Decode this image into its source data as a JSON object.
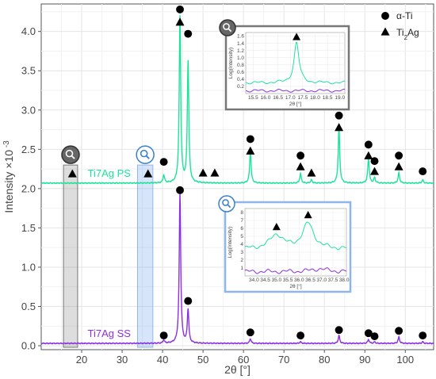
{
  "chart_data": {
    "type": "line",
    "xlabel": "2θ [°]",
    "ylabel": "Intensity ×10",
    "ylabel_exponent": "-3",
    "xlim": [
      10,
      107
    ],
    "ylim": [
      -0.05,
      4.35
    ],
    "xticks": [
      20,
      30,
      40,
      50,
      60,
      70,
      80,
      90,
      100
    ],
    "yticks": [
      "0.0",
      "0.5",
      "1.0",
      "1.5",
      "2.0",
      "2.5",
      "3.0",
      "3.5",
      "4.0"
    ],
    "grid": true,
    "legend": {
      "position": "top-right",
      "items": [
        {
          "symbol": "circle",
          "label": "α-Ti"
        },
        {
          "symbol": "triangle",
          "label": "Ti",
          "subscript": "2",
          "suffix": "Ag"
        }
      ]
    },
    "series": [
      {
        "name": "Ti7Ag PS",
        "color": "#1de39a",
        "baseline": 2.07,
        "peaks": [
          {
            "x": 40.3,
            "h": 0.1
          },
          {
            "x": 44.3,
            "h": 2.12
          },
          {
            "x": 46.3,
            "h": 1.55
          },
          {
            "x": 61.7,
            "h": 0.4
          },
          {
            "x": 74.1,
            "h": 0.12
          },
          {
            "x": 76.8,
            "h": 0.04
          },
          {
            "x": 83.6,
            "h": 0.72
          },
          {
            "x": 90.9,
            "h": 0.32
          },
          {
            "x": 92.4,
            "h": 0.07
          },
          {
            "x": 98.4,
            "h": 0.13
          },
          {
            "x": 104.3,
            "h": 0.04
          }
        ]
      },
      {
        "name": "Ti7Ag SS",
        "color": "#8b2fe0",
        "baseline": 0.03,
        "peaks": [
          {
            "x": 40.3,
            "h": 0.04
          },
          {
            "x": 44.3,
            "h": 1.92
          },
          {
            "x": 46.3,
            "h": 0.43
          },
          {
            "x": 61.7,
            "h": 0.06
          },
          {
            "x": 74.1,
            "h": 0.02
          },
          {
            "x": 83.6,
            "h": 0.1
          },
          {
            "x": 90.9,
            "h": 0.05
          },
          {
            "x": 92.4,
            "h": 0.02
          },
          {
            "x": 98.4,
            "h": 0.08
          },
          {
            "x": 104.3,
            "h": 0.02
          }
        ]
      }
    ],
    "markers": [
      {
        "symbol": "circle",
        "x": 44.3,
        "y": 4.28
      },
      {
        "symbol": "triangle",
        "x": 44.3,
        "y": 4.12
      },
      {
        "symbol": "circle",
        "x": 46.3,
        "y": 3.97
      },
      {
        "symbol": "circle",
        "x": 40.3,
        "y": 2.34
      },
      {
        "symbol": "triangle",
        "x": 17.7,
        "y": 2.19
      },
      {
        "symbol": "triangle",
        "x": 36.4,
        "y": 2.19
      },
      {
        "symbol": "triangle",
        "x": 50.0,
        "y": 2.2
      },
      {
        "symbol": "triangle",
        "x": 52.9,
        "y": 2.2
      },
      {
        "symbol": "circle",
        "x": 61.7,
        "y": 2.63
      },
      {
        "symbol": "triangle",
        "x": 61.7,
        "y": 2.48
      },
      {
        "symbol": "circle",
        "x": 74.1,
        "y": 2.42
      },
      {
        "symbol": "triangle",
        "x": 74.1,
        "y": 2.28
      },
      {
        "symbol": "triangle",
        "x": 76.8,
        "y": 2.2
      },
      {
        "symbol": "circle",
        "x": 83.6,
        "y": 2.93
      },
      {
        "symbol": "triangle",
        "x": 83.6,
        "y": 2.78
      },
      {
        "symbol": "circle",
        "x": 90.9,
        "y": 2.56
      },
      {
        "symbol": "triangle",
        "x": 90.9,
        "y": 2.42
      },
      {
        "symbol": "circle",
        "x": 92.4,
        "y": 2.35
      },
      {
        "symbol": "triangle",
        "x": 92.4,
        "y": 2.22
      },
      {
        "symbol": "circle",
        "x": 98.4,
        "y": 2.42
      },
      {
        "symbol": "triangle",
        "x": 98.4,
        "y": 2.28
      },
      {
        "symbol": "circle",
        "x": 104.3,
        "y": 2.22
      },
      {
        "symbol": "circle",
        "x": 44.3,
        "y": 1.98
      },
      {
        "symbol": "circle",
        "x": 46.3,
        "y": 0.57
      },
      {
        "symbol": "circle",
        "x": 40.3,
        "y": 0.13
      },
      {
        "symbol": "circle",
        "x": 61.7,
        "y": 0.17
      },
      {
        "symbol": "circle",
        "x": 74.1,
        "y": 0.13
      },
      {
        "symbol": "circle",
        "x": 83.6,
        "y": 0.2
      },
      {
        "symbol": "circle",
        "x": 90.9,
        "y": 0.16
      },
      {
        "symbol": "circle",
        "x": 92.4,
        "y": 0.12
      },
      {
        "symbol": "circle",
        "x": 98.4,
        "y": 0.19
      },
      {
        "symbol": "circle",
        "x": 104.3,
        "y": 0.13
      }
    ],
    "highlight_regions": [
      {
        "x0": 15.5,
        "x1": 19.0,
        "style": "gray",
        "magnifier_color": "#666666"
      },
      {
        "x0": 33.8,
        "x1": 37.6,
        "style": "blue",
        "magnifier_color": "#3a7fd0"
      }
    ],
    "insets": [
      {
        "style": "gray",
        "xlabel": "2θ [°]",
        "ylabel": "Log(Intensity)",
        "xlim": [
          15.2,
          19.2
        ],
        "ylim": [
          0,
          1.7
        ],
        "xticks": [
          "15.5",
          "16.0",
          "16.5",
          "17.0",
          "17.5",
          "18.0",
          "18.5",
          "19.0"
        ],
        "yticks": [
          "0.2",
          "0.4",
          "0.6",
          "0.8",
          "1.0",
          "1.2",
          "1.4",
          "1.6"
        ],
        "marker": {
          "symbol": "triangle",
          "x": 17.25,
          "y": 1.58
        },
        "series": [
          {
            "color": "#1de39a",
            "base": 0.3,
            "peaks": [
              {
                "x": 17.25,
                "h": 1.12,
                "w": 0.12
              }
            ]
          },
          {
            "color": "#8b2fe0",
            "base": 0.08,
            "peaks": []
          }
        ]
      },
      {
        "style": "blue",
        "xlabel": "2θ [°]",
        "ylabel": "Log(Intensity)",
        "xlim": [
          33.6,
          38.1
        ],
        "ylim": [
          0,
          8.5
        ],
        "xticks": [
          "34.0",
          "34.5",
          "35.0",
          "35.5",
          "36.0",
          "36.5",
          "37.0",
          "37.5",
          "38.0"
        ],
        "yticks": [
          "1",
          "2",
          "3",
          "4",
          "5",
          "6",
          "7",
          "8"
        ],
        "markers": [
          {
            "symbol": "triangle",
            "x": 35.0,
            "y": 6.2
          },
          {
            "symbol": "triangle",
            "x": 36.4,
            "y": 7.7
          }
        ],
        "series": [
          {
            "color": "#1de39a",
            "base": 3.4,
            "peaks": [
              {
                "x": 35.0,
                "h": 1.8,
                "w": 0.35
              },
              {
                "x": 36.4,
                "h": 3.2,
                "w": 0.3
              }
            ]
          },
          {
            "color": "#8b2fe0",
            "base": 0.55,
            "peaks": [
              {
                "x": 36.9,
                "h": 0.35,
                "w": 0.4
              }
            ]
          }
        ]
      }
    ]
  }
}
